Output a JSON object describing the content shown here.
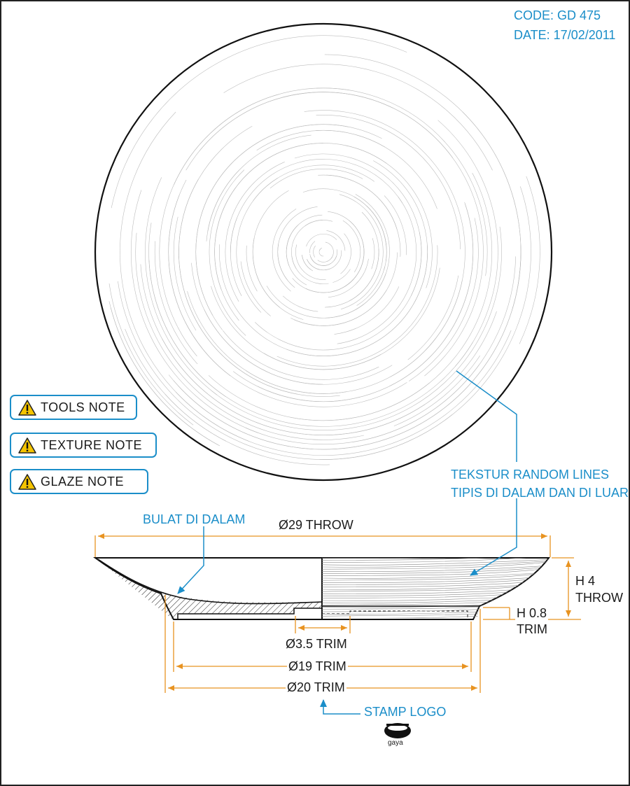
{
  "header": {
    "code": "CODE: GD 475",
    "date": "DATE: 17/02/2011"
  },
  "notes": [
    {
      "label": "TOOLS NOTE"
    },
    {
      "label": "TEXTURE NOTE"
    },
    {
      "label": "GLAZE NOTE"
    }
  ],
  "callouts": {
    "texture_line1": "TEKSTUR RANDOM  LINES",
    "texture_line2": "TIPIS DI DALAM DAN DI LUAR",
    "inner": "BULAT DI DALAM",
    "stamp": "STAMP LOGO"
  },
  "dimensions": {
    "throw_diameter": "Ø29 THROW",
    "height_throw_1": "H 4",
    "height_throw_2": "THROW",
    "height_trim_1": "H 0.8",
    "height_trim_2": "TRIM",
    "small_trim": "Ø3.5 TRIM",
    "mid_trim": "Ø19 TRIM",
    "foot_trim": "Ø20 TRIM"
  },
  "logo": {
    "text": "gaya"
  },
  "colors": {
    "callout": "#1b8ec9",
    "dimension": "#e89321",
    "outline": "#111111"
  }
}
